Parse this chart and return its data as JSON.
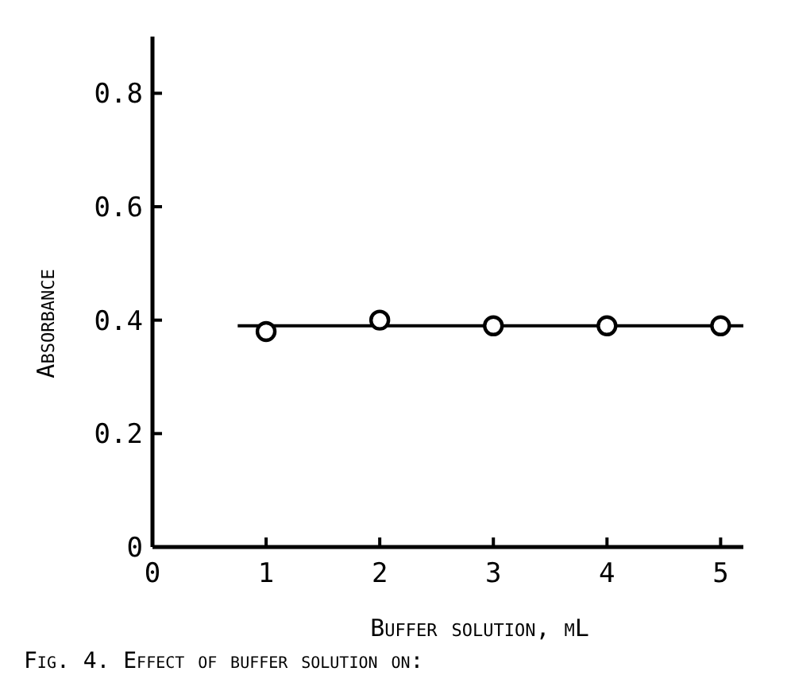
{
  "chart_data": {
    "type": "scatter",
    "xlabel": "Buffer solution, mL",
    "ylabel": "Absorbance",
    "annotations": [
      "Fig. 4. Effect of buffer solution on:"
    ],
    "series": [
      {
        "color": "#000000",
        "marker": "circle",
        "x": [
          1,
          2,
          3,
          4,
          5
        ],
        "values": [
          0.38,
          0.4,
          0.39,
          0.39,
          0.39
        ]
      },
      {
        "type": "line",
        "color": "#000000",
        "x": [
          0.75,
          5.2
        ],
        "values": [
          0.39,
          0.39
        ]
      }
    ],
    "xlim": [
      0,
      5.2
    ],
    "ylim": [
      0,
      0.9
    ],
    "xticks": [
      0,
      1,
      2,
      3,
      4,
      5
    ],
    "yticks": [
      0,
      0.2,
      0.4,
      0.6,
      0.8
    ],
    "grid": false
  }
}
